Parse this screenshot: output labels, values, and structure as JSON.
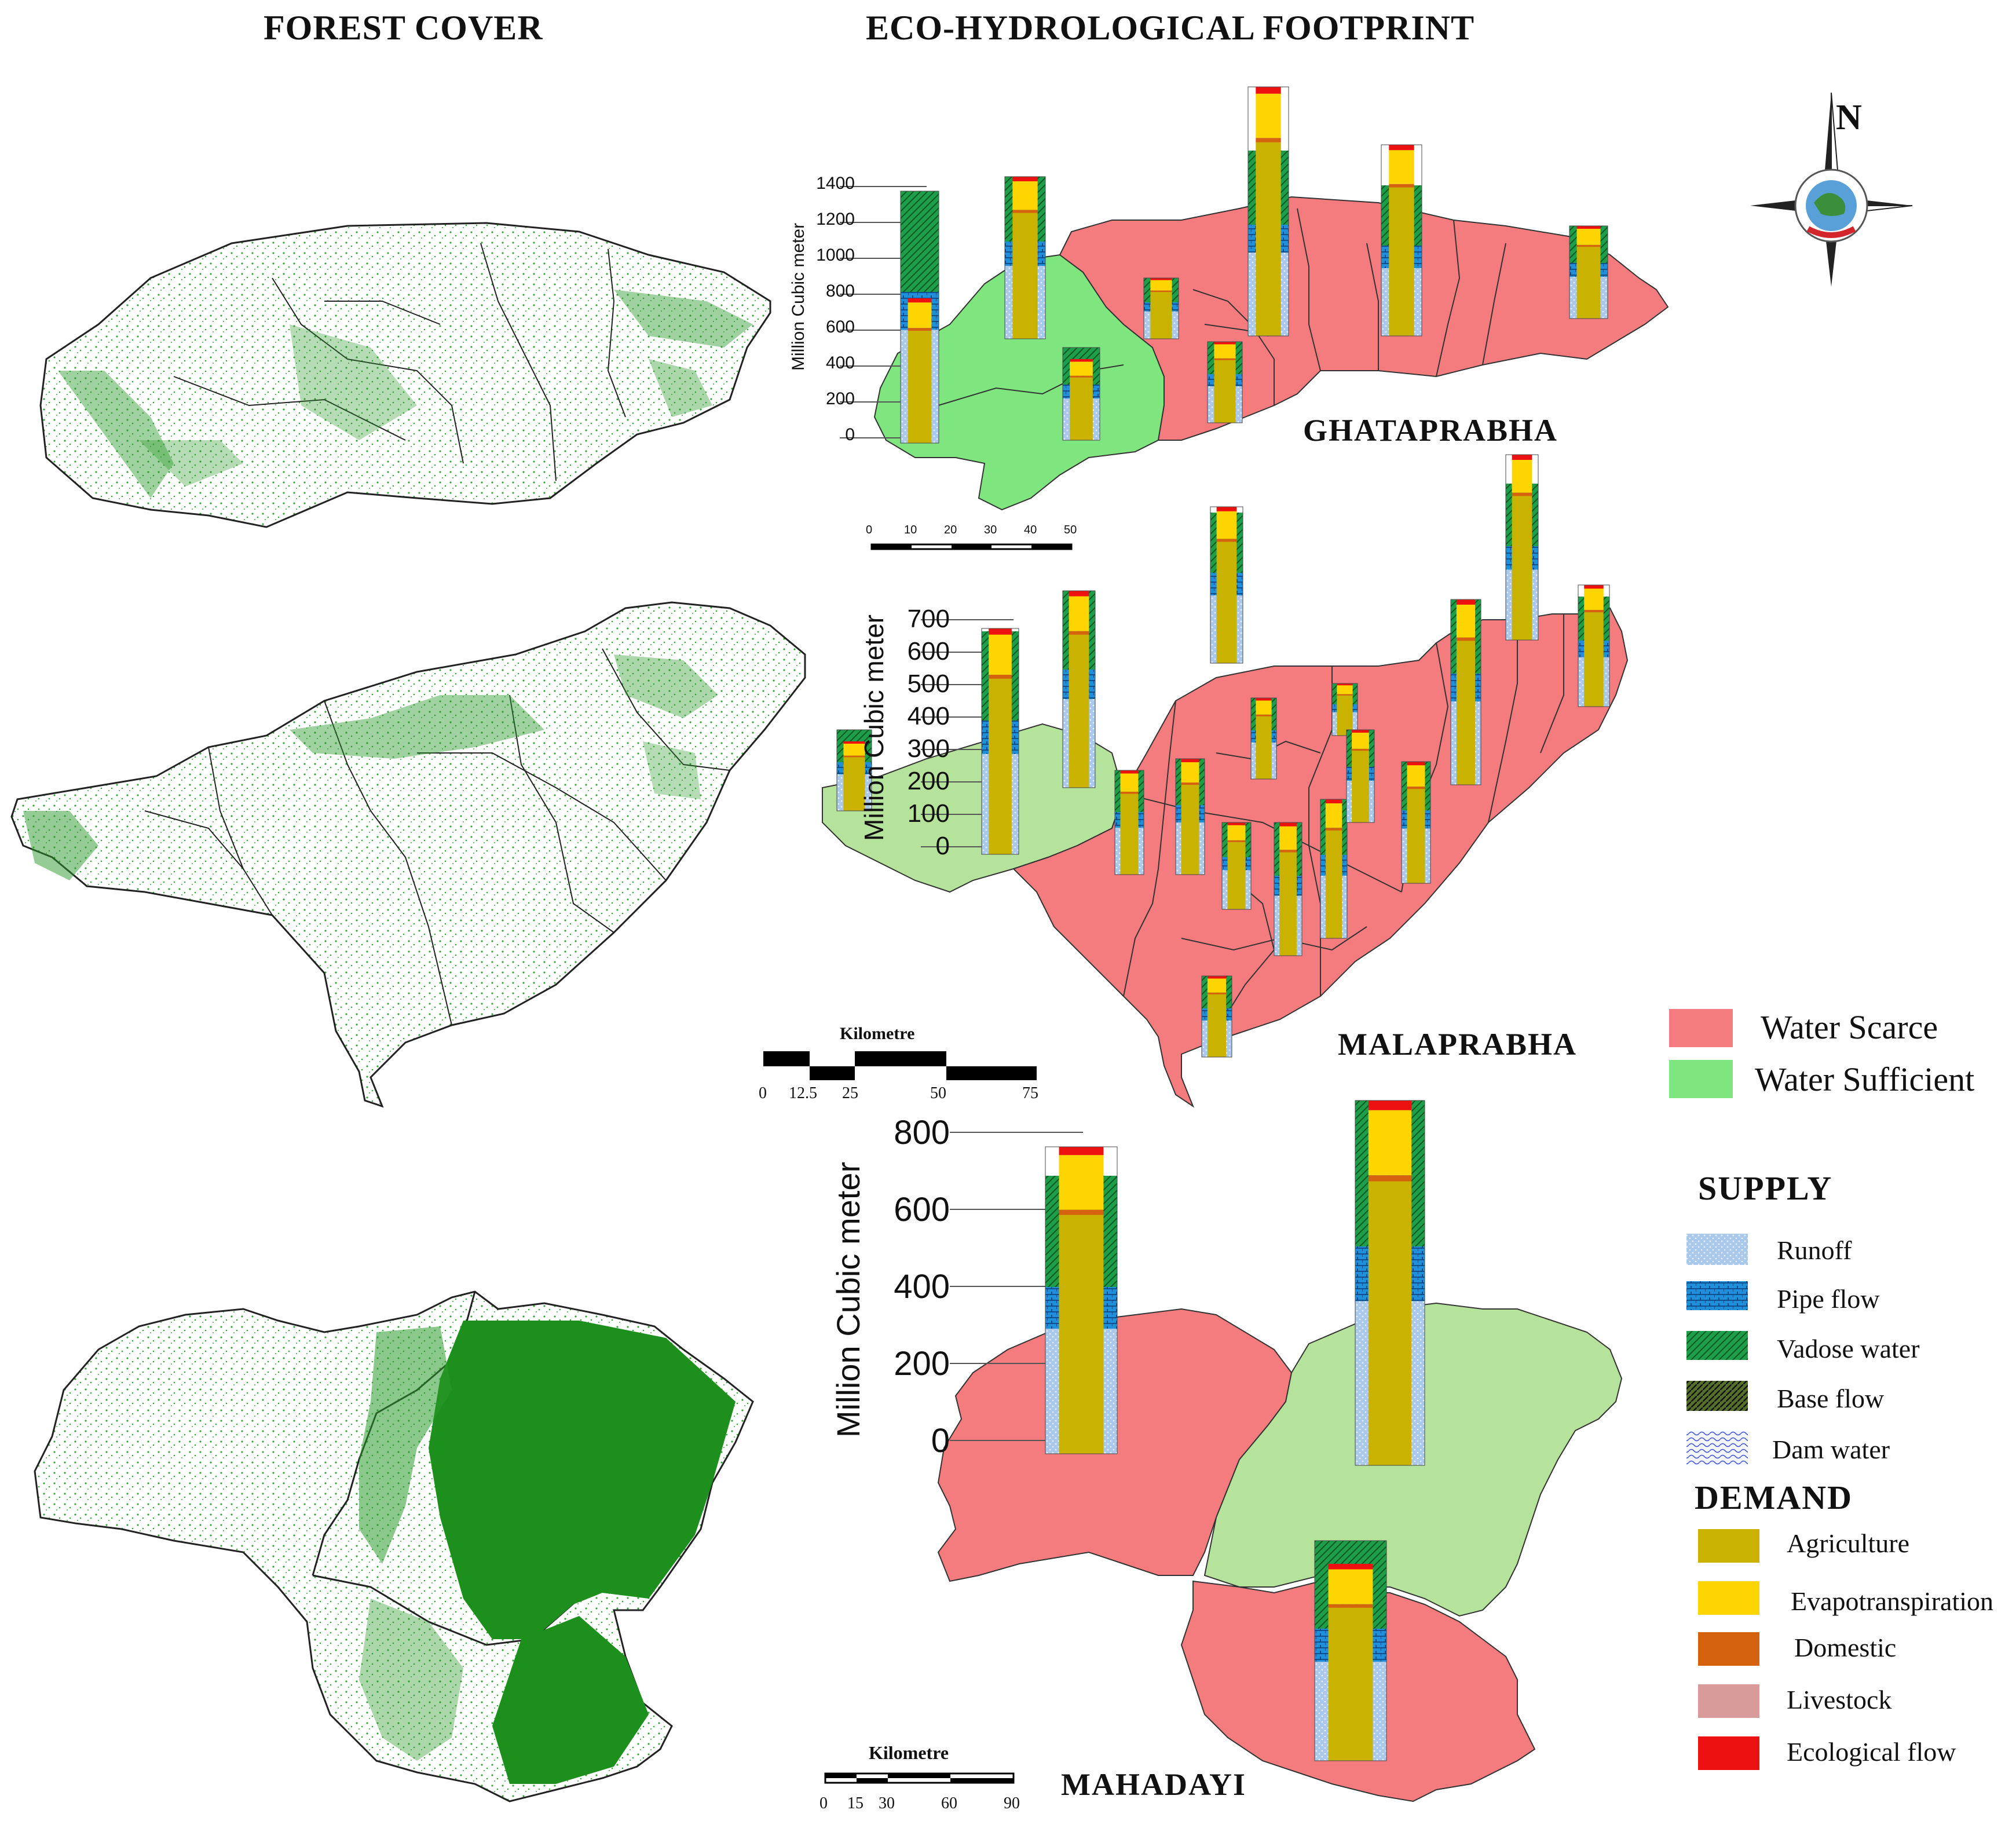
{
  "headers": {
    "forest": "FOREST COVER",
    "eco": "ECO-HYDROLOGICAL FOOTPRINT"
  },
  "north": "N",
  "basins": [
    {
      "name": "GHATAPRABHA",
      "ylabel": "Million Cubic meter",
      "ticks": [
        "1400",
        "1200",
        "1000",
        "800",
        "600",
        "400",
        "200",
        "0"
      ],
      "scale": {
        "title": "",
        "labels": [
          "0",
          "10",
          "20",
          "30",
          "40",
          "50"
        ]
      }
    },
    {
      "name": "MALAPRABHA",
      "ylabel": "Million Cubic meter",
      "ticks": [
        "700",
        "600",
        "500",
        "400",
        "300",
        "200",
        "100",
        "0"
      ],
      "scale": {
        "title": "Kilometre",
        "labels": [
          "0",
          "12.5",
          "25",
          "50",
          "75"
        ]
      }
    },
    {
      "name": "MAHADAYI",
      "ylabel": "Million Cubic meter",
      "ticks": [
        "800",
        "600",
        "400",
        "200",
        "0"
      ],
      "scale": {
        "title": "Kilometre",
        "labels": [
          "0",
          "15",
          "30",
          "60",
          "90"
        ]
      }
    }
  ],
  "status_legend": [
    {
      "label": "Water Scarce",
      "color": "#f47b7e"
    },
    {
      "label": "Water Sufficient",
      "color": "#7fe67f"
    }
  ],
  "supply_legend": {
    "title": "SUPPLY",
    "items": [
      {
        "label": "Runoff",
        "color": "#a9c8ea"
      },
      {
        "label": "Pipe flow",
        "color": "#1e8fd8"
      },
      {
        "label": "Vadose water",
        "color": "#1f9e4a"
      },
      {
        "label": "Base flow",
        "color": "#3f5a1a"
      },
      {
        "label": "Dam water",
        "color": "#dde4ff"
      }
    ]
  },
  "demand_legend": {
    "title": "DEMAND",
    "items": [
      {
        "label": "Agriculture",
        "color": "#c9b300"
      },
      {
        "label": "Evapotranspiration",
        "color": "#ffd500"
      },
      {
        "label": "Domestic",
        "color": "#d4620f"
      },
      {
        "label": "Livestock",
        "color": "#d99a9a"
      },
      {
        "label": "Ecological flow",
        "color": "#ee1111"
      }
    ]
  }
}
